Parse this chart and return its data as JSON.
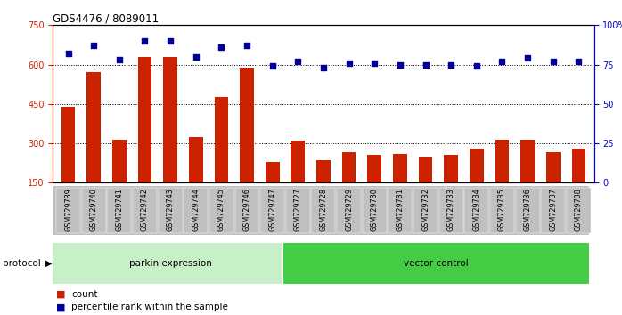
{
  "title": "GDS4476 / 8089011",
  "samples": [
    "GSM729739",
    "GSM729740",
    "GSM729741",
    "GSM729742",
    "GSM729743",
    "GSM729744",
    "GSM729745",
    "GSM729746",
    "GSM729747",
    "GSM729727",
    "GSM729728",
    "GSM729729",
    "GSM729730",
    "GSM729731",
    "GSM729732",
    "GSM729733",
    "GSM729734",
    "GSM729735",
    "GSM729736",
    "GSM729737",
    "GSM729738"
  ],
  "counts": [
    440,
    570,
    315,
    630,
    630,
    325,
    475,
    590,
    230,
    310,
    235,
    265,
    255,
    260,
    250,
    255,
    280,
    315,
    315,
    265,
    280
  ],
  "percentiles": [
    82,
    87,
    78,
    90,
    90,
    80,
    86,
    87,
    74,
    77,
    73,
    76,
    76,
    75,
    75,
    75,
    74,
    77,
    79,
    77,
    77
  ],
  "parkin_count": 9,
  "vector_count": 12,
  "ylim_left": [
    150,
    750
  ],
  "ylim_right": [
    0,
    100
  ],
  "yticks_left": [
    150,
    300,
    450,
    600,
    750
  ],
  "yticks_right": [
    0,
    25,
    50,
    75,
    100
  ],
  "ytick_labels_right": [
    "0",
    "25",
    "50",
    "75",
    "100%"
  ],
  "grid_vals": [
    300,
    450,
    600
  ],
  "bar_color": "#cc2200",
  "dot_color": "#000099",
  "parkin_fill": "#c8f0c8",
  "vector_fill": "#44cc44",
  "xlabel_color": "#cc2200",
  "ylabel_right_color": "#0000cc",
  "xtick_bg": "#c0c0c0"
}
